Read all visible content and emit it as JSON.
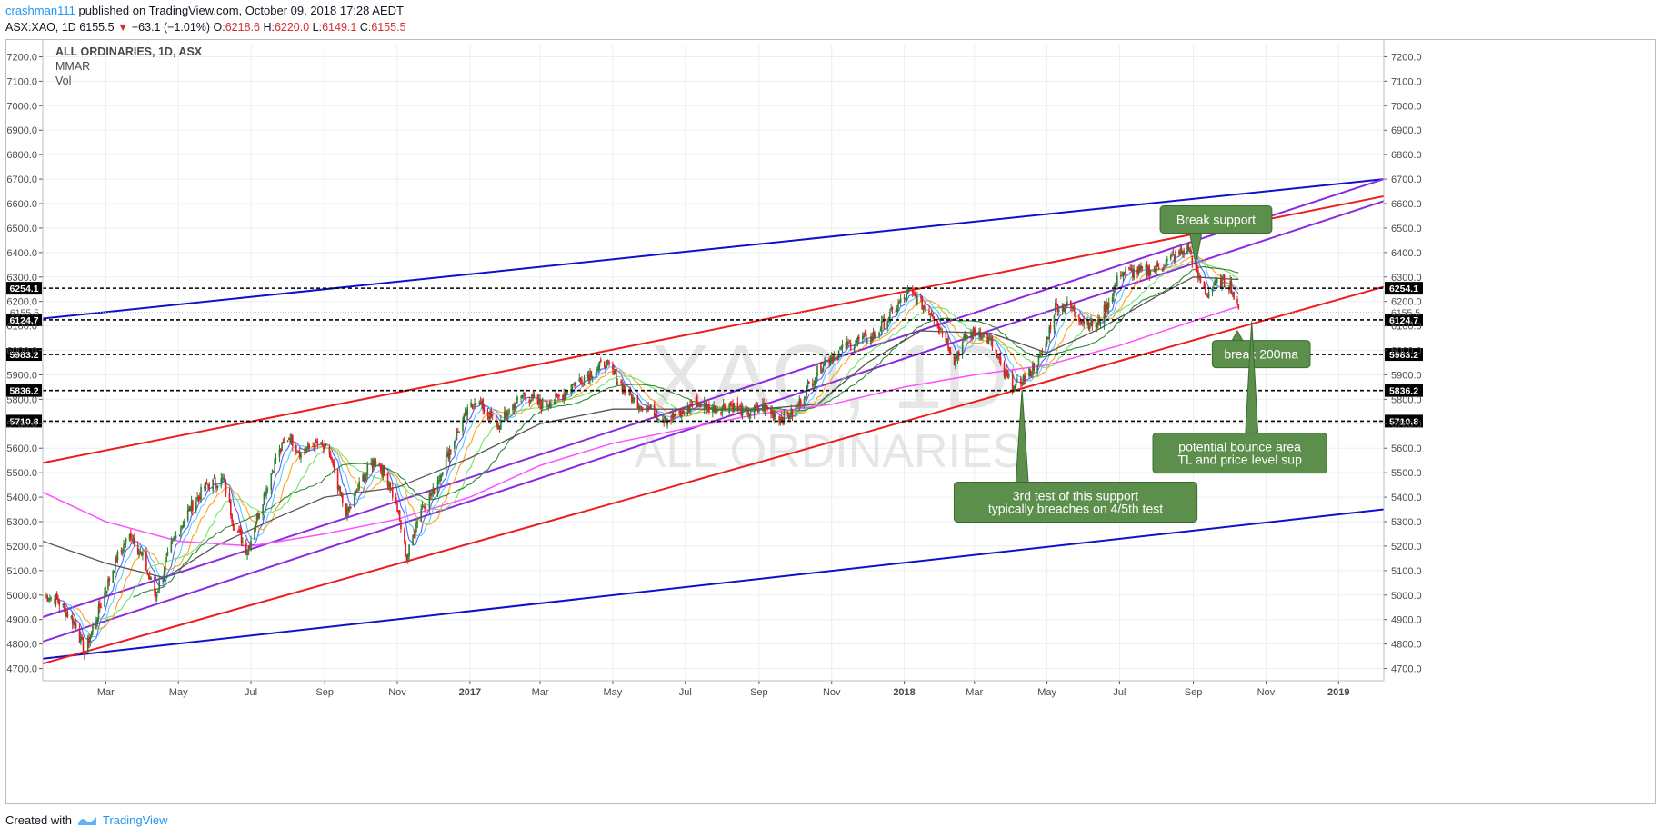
{
  "header": {
    "author": "crashman111",
    "published": "published on TradingView.com, October 09, 2018 17:28 AEDT",
    "symbol": "ASX:XAO, 1D",
    "last": "6155.5",
    "change": "−63.1 (−1.01%)",
    "o_label": "O:",
    "o_value": "6218.6",
    "h_label": "H:",
    "h_value": "6220.0",
    "l_label": "L:",
    "l_value": "6149.1",
    "c_label": "C:",
    "c_value": "6155.5"
  },
  "legend": {
    "title": "ALL ORDINARIES, 1D, ASX",
    "line2": "MMAR",
    "line3": "Vol"
  },
  "watermark": {
    "big": "XAO, 1D",
    "small": "ALL ORDINARIES"
  },
  "footer": {
    "created_with": "Created with",
    "brand": "TradingView"
  },
  "colors": {
    "up_candle": "#2e7d32",
    "down_candle": "#e31b23",
    "outer_channel": "#1010cc",
    "red_channel": "#ee1c1c",
    "purple_channel": "#8a2be2",
    "ma_200": "#ff4fff",
    "callout_fill": "#5b8f4b",
    "level_line": "#000000"
  },
  "chart_data": {
    "type": "candlestick",
    "symbol": "ASX:XAO",
    "interval": "1D",
    "ylim": [
      4650,
      7250
    ],
    "y_ticks": [
      "4700.0",
      "4800.0",
      "4900.0",
      "5000.0",
      "5100.0",
      "5200.0",
      "5300.0",
      "5400.0",
      "5500.0",
      "5600.0",
      "5700.0",
      "5800.0",
      "5900.0",
      "6000.0",
      "6100.0",
      "6200.0",
      "6300.0",
      "6400.0",
      "6500.0",
      "6600.0",
      "6700.0",
      "6800.0",
      "6900.0",
      "7000.0",
      "7100.0",
      "7200.0"
    ],
    "x_ticks": [
      "Mar",
      "May",
      "Jul",
      "Sep",
      "Nov",
      "2017",
      "Mar",
      "May",
      "Jul",
      "Sep",
      "Nov",
      "2018",
      "Mar",
      "May",
      "Jul",
      "Sep",
      "Nov",
      "2019"
    ],
    "x_tick_dates": [
      "2016-03-01",
      "2016-05-01",
      "2016-07-01",
      "2016-09-01",
      "2016-11-01",
      "2017-01-01",
      "2017-03-01",
      "2017-05-01",
      "2017-07-01",
      "2017-09-01",
      "2017-11-01",
      "2018-01-01",
      "2018-03-01",
      "2018-05-01",
      "2018-07-01",
      "2018-09-01",
      "2018-11-01",
      "2019-01-01"
    ],
    "x_range": [
      "2016-01-08",
      "2019-02-08"
    ],
    "price_path": [
      [
        "2016-01-08",
        5000
      ],
      [
        "2016-01-20",
        4980
      ],
      [
        "2016-02-05",
        4880
      ],
      [
        "2016-02-12",
        4760
      ],
      [
        "2016-02-25",
        4950
      ],
      [
        "2016-03-10",
        5150
      ],
      [
        "2016-03-22",
        5250
      ],
      [
        "2016-04-01",
        5150
      ],
      [
        "2016-04-12",
        5000
      ],
      [
        "2016-04-25",
        5200
      ],
      [
        "2016-05-10",
        5350
      ],
      [
        "2016-05-25",
        5450
      ],
      [
        "2016-06-08",
        5470
      ],
      [
        "2016-06-16",
        5300
      ],
      [
        "2016-06-28",
        5180
      ],
      [
        "2016-07-08",
        5350
      ],
      [
        "2016-07-22",
        5560
      ],
      [
        "2016-08-02",
        5650
      ],
      [
        "2016-08-12",
        5580
      ],
      [
        "2016-08-25",
        5620
      ],
      [
        "2016-09-05",
        5580
      ],
      [
        "2016-09-12",
        5430
      ],
      [
        "2016-09-20",
        5330
      ],
      [
        "2016-10-03",
        5480
      ],
      [
        "2016-10-14",
        5560
      ],
      [
        "2016-10-25",
        5460
      ],
      [
        "2016-11-01",
        5350
      ],
      [
        "2016-11-09",
        5150
      ],
      [
        "2016-11-20",
        5350
      ],
      [
        "2016-12-01",
        5420
      ],
      [
        "2016-12-12",
        5560
      ],
      [
        "2016-12-25",
        5700
      ],
      [
        "2017-01-05",
        5800
      ],
      [
        "2017-01-15",
        5750
      ],
      [
        "2017-01-25",
        5690
      ],
      [
        "2017-02-05",
        5770
      ],
      [
        "2017-02-15",
        5820
      ],
      [
        "2017-03-01",
        5780
      ],
      [
        "2017-03-15",
        5800
      ],
      [
        "2017-03-28",
        5860
      ],
      [
        "2017-04-10",
        5900
      ],
      [
        "2017-04-25",
        5950
      ],
      [
        "2017-05-05",
        5880
      ],
      [
        "2017-05-18",
        5800
      ],
      [
        "2017-06-01",
        5760
      ],
      [
        "2017-06-15",
        5720
      ],
      [
        "2017-06-28",
        5740
      ],
      [
        "2017-07-10",
        5790
      ],
      [
        "2017-07-25",
        5760
      ],
      [
        "2017-08-08",
        5780
      ],
      [
        "2017-08-22",
        5740
      ],
      [
        "2017-09-05",
        5770
      ],
      [
        "2017-09-20",
        5720
      ],
      [
        "2017-10-01",
        5750
      ],
      [
        "2017-10-12",
        5850
      ],
      [
        "2017-10-25",
        5950
      ],
      [
        "2017-11-08",
        6000
      ],
      [
        "2017-11-22",
        6040
      ],
      [
        "2017-12-05",
        6050
      ],
      [
        "2017-12-18",
        6130
      ],
      [
        "2018-01-05",
        6240
      ],
      [
        "2018-01-15",
        6190
      ],
      [
        "2018-01-25",
        6150
      ],
      [
        "2018-02-05",
        6050
      ],
      [
        "2018-02-12",
        5960
      ],
      [
        "2018-02-22",
        6060
      ],
      [
        "2018-03-05",
        6080
      ],
      [
        "2018-03-15",
        6030
      ],
      [
        "2018-03-26",
        5900
      ],
      [
        "2018-04-04",
        5850
      ],
      [
        "2018-04-15",
        5900
      ],
      [
        "2018-04-28",
        5990
      ],
      [
        "2018-05-08",
        6180
      ],
      [
        "2018-05-20",
        6180
      ],
      [
        "2018-06-01",
        6120
      ],
      [
        "2018-06-12",
        6100
      ],
      [
        "2018-06-22",
        6200
      ],
      [
        "2018-07-02",
        6320
      ],
      [
        "2018-07-15",
        6320
      ],
      [
        "2018-07-30",
        6330
      ],
      [
        "2018-08-15",
        6380
      ],
      [
        "2018-08-28",
        6420
      ],
      [
        "2018-09-05",
        6300
      ],
      [
        "2018-09-12",
        6230
      ],
      [
        "2018-09-22",
        6280
      ],
      [
        "2018-10-02",
        6270
      ],
      [
        "2018-10-05",
        6218
      ],
      [
        "2018-10-09",
        6155.5
      ]
    ],
    "ma_200": [
      [
        "2016-01-08",
        5420
      ],
      [
        "2016-03-01",
        5300
      ],
      [
        "2016-05-01",
        5220
      ],
      [
        "2016-07-01",
        5200
      ],
      [
        "2016-09-01",
        5250
      ],
      [
        "2016-11-01",
        5310
      ],
      [
        "2017-01-01",
        5400
      ],
      [
        "2017-03-01",
        5530
      ],
      [
        "2017-05-01",
        5620
      ],
      [
        "2017-07-01",
        5680
      ],
      [
        "2017-09-01",
        5740
      ],
      [
        "2017-11-01",
        5780
      ],
      [
        "2018-01-01",
        5850
      ],
      [
        "2018-03-01",
        5900
      ],
      [
        "2018-05-01",
        5940
      ],
      [
        "2018-07-01",
        6020
      ],
      [
        "2018-09-01",
        6120
      ],
      [
        "2018-10-09",
        6180
      ]
    ],
    "ma_slow": [
      [
        "2016-01-08",
        5220
      ],
      [
        "2016-03-01",
        5130
      ],
      [
        "2016-04-20",
        5070
      ],
      [
        "2016-06-01",
        5200
      ],
      [
        "2016-07-20",
        5310
      ],
      [
        "2016-09-01",
        5400
      ],
      [
        "2016-11-01",
        5440
      ],
      [
        "2017-01-01",
        5560
      ],
      [
        "2017-03-01",
        5700
      ],
      [
        "2017-05-01",
        5760
      ],
      [
        "2017-07-01",
        5760
      ],
      [
        "2017-09-01",
        5760
      ],
      [
        "2017-10-20",
        5780
      ],
      [
        "2017-12-01",
        5950
      ],
      [
        "2018-01-15",
        6080
      ],
      [
        "2018-03-15",
        6070
      ],
      [
        "2018-05-01",
        5990
      ],
      [
        "2018-06-15",
        6090
      ],
      [
        "2018-08-01",
        6220
      ],
      [
        "2018-09-01",
        6300
      ],
      [
        "2018-10-09",
        6290
      ]
    ],
    "channels": [
      {
        "name": "outer_upper",
        "from": [
          "2016-01-08",
          6130
        ],
        "to": [
          "2019-02-08",
          6700
        ]
      },
      {
        "name": "outer_lower",
        "from": [
          "2016-01-08",
          4740
        ],
        "to": [
          "2019-02-08",
          5350
        ]
      },
      {
        "name": "red_upper",
        "from": [
          "2016-01-08",
          5540
        ],
        "to": [
          "2019-02-08",
          6630
        ]
      },
      {
        "name": "red_lower",
        "from": [
          "2016-01-08",
          4720
        ],
        "to": [
          "2019-02-08",
          6260
        ]
      },
      {
        "name": "purple_upper",
        "from": [
          "2016-01-08",
          4910
        ],
        "to": [
          "2019-02-08",
          6700
        ]
      },
      {
        "name": "purple_lower",
        "from": [
          "2016-01-08",
          4810
        ],
        "to": [
          "2019-02-08",
          6610
        ]
      }
    ],
    "levels": [
      {
        "value": 6254.1,
        "label": "6254.1",
        "start": "2016-01-08"
      },
      {
        "value": 6124.7,
        "label": "6124.7",
        "start": "2016-01-08"
      },
      {
        "value": 5983.2,
        "label": "5983.2",
        "start": "2016-01-08"
      },
      {
        "value": 5836.2,
        "label": "5836.2",
        "start": "2016-01-08"
      },
      {
        "value": 5710.8,
        "label": "5710.8",
        "start": "2016-01-08"
      }
    ],
    "current_price": {
      "value": 6155.5,
      "label": "6155.5"
    },
    "annotations": [
      {
        "text": [
          "Break support"
        ],
        "box_date": "2018-09-20",
        "box_price": 6535,
        "tip_date": "2018-09-03",
        "tip_price": 6350
      },
      {
        "text": [
          "break 200ma"
        ],
        "box_date": "2018-10-28",
        "box_price": 5985,
        "tip_date": "2018-10-08",
        "tip_price": 6080
      },
      {
        "text": [
          "potential bounce area",
          "TL and price level sup"
        ],
        "box_date": "2018-10-10",
        "box_price": 5580,
        "tip_date": "2018-10-20",
        "tip_price": 6120
      },
      {
        "text": [
          "3rd test of this support",
          "typically breaches on 4/5th test"
        ],
        "box_date": "2018-05-25",
        "box_price": 5380,
        "tip_date": "2018-04-10",
        "tip_price": 5840
      }
    ]
  }
}
